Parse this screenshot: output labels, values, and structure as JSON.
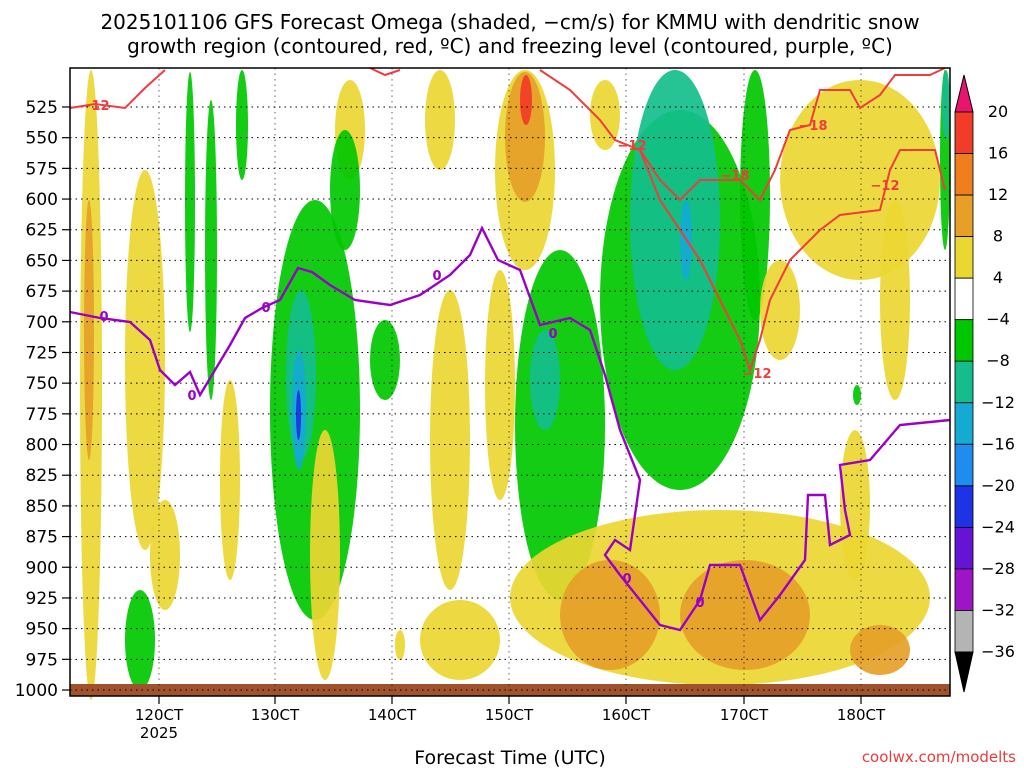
{
  "chart_data": {
    "type": "heatmap",
    "title_line1": "2025101106 GFS Forecast Omega (shaded, −cm/s) for KMMU with dendritic snow",
    "title_line2": "growth region (contoured, red, ºC) and freezing level (contoured, purple, ºC)",
    "xlabel": "Forecast Time (UTC)",
    "x_ticks": [
      "120CT",
      "130CT",
      "140CT",
      "150CT",
      "160CT",
      "170CT",
      "180CT"
    ],
    "x_sub_label": "2025",
    "y_ticks": [
      "525",
      "550",
      "575",
      "600",
      "625",
      "650",
      "675",
      "700",
      "725",
      "750",
      "775",
      "800",
      "825",
      "850",
      "875",
      "900",
      "925",
      "950",
      "975",
      "1000"
    ],
    "y_range_hpa": [
      500,
      1000
    ],
    "colorbar": {
      "labels": [
        "20",
        "16",
        "12",
        "8",
        "4",
        "−4",
        "−8",
        "−12",
        "−16",
        "−20",
        "−24",
        "−28",
        "−32",
        "−36"
      ],
      "colors": [
        "#e8146e",
        "#f03c28",
        "#f07d1e",
        "#e6a028",
        "#ebd732",
        "#ffffff",
        "#00c800",
        "#14be8c",
        "#14aad2",
        "#1e8cf0",
        "#1e32e6",
        "#6414d2",
        "#a014c8",
        "#b4b4b4",
        "#000000"
      ]
    },
    "red_contour_labels": [
      "−12",
      "−12",
      "−18",
      "−12",
      "−18",
      "−12"
    ],
    "purple_contour_labels": [
      "0",
      "0",
      "0",
      "0",
      "0",
      "0",
      "0"
    ],
    "credit": "coolwx.com/modelts",
    "omega_colors": {
      "yellow": "#ebd732",
      "orange": "#e6a028",
      "deep_orange": "#f07d1e",
      "red": "#f03c28",
      "green": "#00c800",
      "teal": "#14be8c",
      "cyan": "#14aad2",
      "blue": "#1e32e6",
      "terrain": "#a0522d",
      "freezing": "#9b00c8",
      "dgz": "#f03c3c"
    }
  }
}
